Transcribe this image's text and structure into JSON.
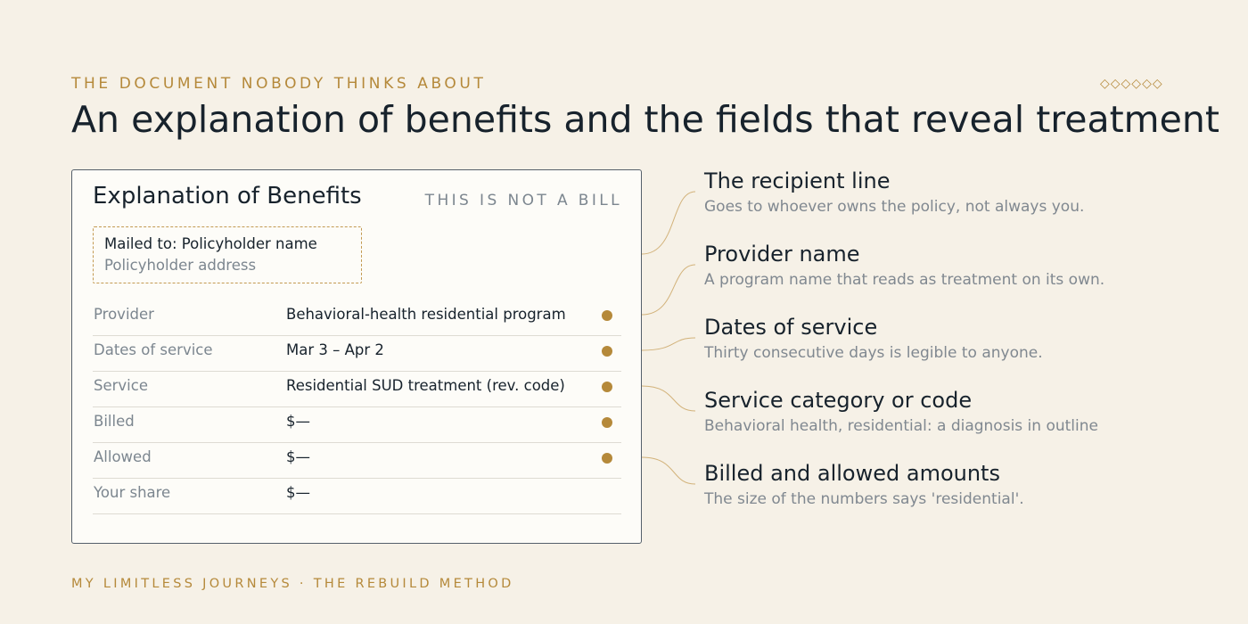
{
  "header": {
    "eyebrow": "THE DOCUMENT NOBODY THINKS ABOUT",
    "ornament": "◇◇◇◇◇◇",
    "title": "An explanation of benefits and the fields that reveal treatment"
  },
  "eob": {
    "title": "Explanation of Benefits",
    "note": "THIS IS NOT A BILL",
    "recipient": {
      "line1": "Mailed to: Policyholder name",
      "line2": "Policyholder address"
    },
    "rows": [
      {
        "label": "Provider",
        "value": "Behavioral-health residential program",
        "flagged": true
      },
      {
        "label": "Dates of service",
        "value": "Mar 3 – Apr 2",
        "flagged": true
      },
      {
        "label": "Service",
        "value": "Residential SUD treatment (rev. code)",
        "flagged": true
      },
      {
        "label": "Billed",
        "value": "$—",
        "flagged": true
      },
      {
        "label": "Allowed",
        "value": "$—",
        "flagged": true
      },
      {
        "label": "Your share",
        "value": "$—",
        "flagged": false
      }
    ]
  },
  "callouts": [
    {
      "heading": "The recipient line",
      "detail": "Goes to whoever owns the policy, not always you."
    },
    {
      "heading": "Provider name",
      "detail": "A program name that reads as treatment on its own."
    },
    {
      "heading": "Dates of service",
      "detail": "Thirty consecutive days is legible to anyone."
    },
    {
      "heading": "Service category or code",
      "detail": "Behavioral health, residential: a diagnosis in outline"
    },
    {
      "heading": "Billed and allowed amounts",
      "detail": "The size of the numbers says 'residential'."
    }
  ],
  "footer": "MY LIMITLESS JOURNEYS · THE REBUILD METHOD",
  "colors": {
    "background": "#f6f1e7",
    "accent": "#b5893a",
    "ink": "#17222c",
    "muted": "#7c868f"
  }
}
